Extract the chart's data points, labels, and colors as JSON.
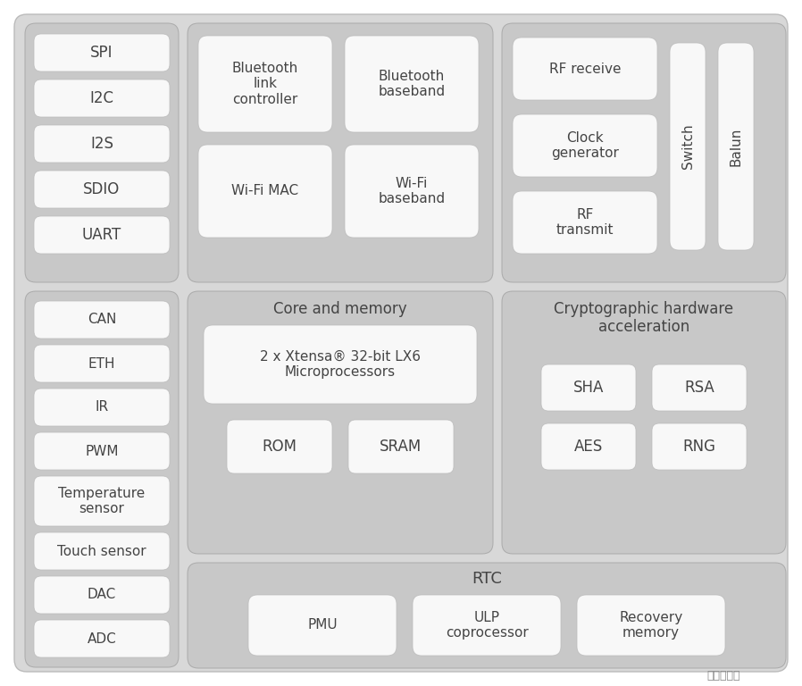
{
  "outer_bg": "#ffffff",
  "main_bg": "#d8d8d8",
  "panel_bg": "#c8c8c8",
  "box_white": "#f8f8f8",
  "edge_color": "#aaaaaa",
  "text_color": "#444444",
  "watermark": "铁熊玩创客",
  "left_top_items": [
    "SPI",
    "I2C",
    "I2S",
    "SDIO",
    "UART"
  ],
  "left_bot_items": [
    "CAN",
    "ETH",
    "IR",
    "PWM",
    "Temperature\nsensor",
    "Touch sensor",
    "DAC",
    "ADC"
  ],
  "bt_boxes": [
    "Bluetooth\nlink\ncontroller",
    "Bluetooth\nbaseband"
  ],
  "wifi_boxes": [
    "Wi-Fi MAC",
    "Wi-Fi\nbaseband"
  ],
  "rf_left": [
    "RF receive",
    "Clock\ngenerator",
    "RF\ntransmit"
  ],
  "rf_right": [
    "Switch",
    "Balun"
  ],
  "core_title": "Core and memory",
  "core_cpu": "2 x Xtensa® 32-bit LX6\nMicroprocessors",
  "core_mem": [
    "ROM",
    "SRAM"
  ],
  "crypto_title": "Cryptographic hardware\nacceleration",
  "crypto_boxes": [
    [
      "SHA",
      "RSA"
    ],
    [
      "AES",
      "RNG"
    ]
  ],
  "rtc_title": "RTC",
  "rtc_boxes": [
    "PMU",
    "ULP\ncoprocessor",
    "Recovery\nmemory"
  ]
}
